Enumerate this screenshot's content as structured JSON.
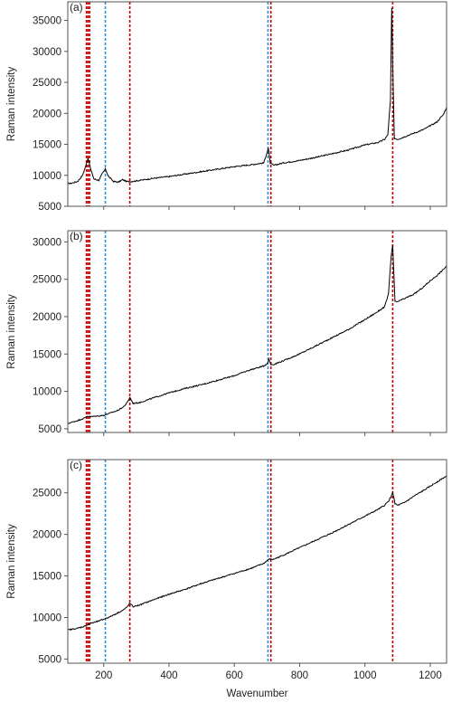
{
  "chart_data": {
    "xlabel": "Wavenumber",
    "xlim": [
      90,
      1250
    ],
    "xticks": [
      200,
      400,
      600,
      800,
      1000,
      1200
    ],
    "reference_lines": {
      "red": {
        "color": "#cc0000",
        "positions": [
          147,
          152,
          157,
          280,
          712,
          1085
        ]
      },
      "blue": {
        "color": "#2b8fd6",
        "positions": [
          205,
          703
        ]
      }
    },
    "panels": [
      {
        "label": "(a)",
        "type": "line",
        "ylabel": "Raman intensity",
        "ylim": [
          5000,
          38000
        ],
        "yticks": [
          5000,
          10000,
          15000,
          20000,
          25000,
          30000,
          35000
        ],
        "series": [
          {
            "color": "#000000",
            "x": [
              90,
              100,
              120,
              135,
              145,
              152,
              160,
              170,
              185,
              195,
              205,
              215,
              230,
              245,
              258,
              270,
              285,
              300,
              350,
              400,
              450,
              500,
              550,
              600,
              650,
              690,
              698,
              704,
              710,
              720,
              750,
              800,
              850,
              900,
              950,
              1000,
              1040,
              1060,
              1070,
              1078,
              1082,
              1085,
              1090,
              1100,
              1120,
              1150,
              1180,
              1200,
              1220,
              1240,
              1250
            ],
            "y": [
              8700,
              8700,
              9000,
              10000,
              11500,
              12800,
              11000,
              9400,
              9200,
              10200,
              11000,
              9800,
              9000,
              8900,
              9300,
              9000,
              9000,
              9100,
              9500,
              9800,
              10200,
              10600,
              11000,
              11400,
              11700,
              12000,
              13300,
              14400,
              12000,
              11600,
              12000,
              12400,
              12900,
              13500,
              14100,
              14900,
              15300,
              15800,
              16500,
              22000,
              37000,
              28000,
              16000,
              15800,
              16200,
              16800,
              17400,
              18000,
              18600,
              19800,
              21000
            ]
          }
        ]
      },
      {
        "label": "(b)",
        "type": "line",
        "ylabel": "Raman intensity",
        "ylim": [
          4500,
          31500
        ],
        "yticks": [
          5000,
          10000,
          15000,
          20000,
          25000,
          30000
        ],
        "series": [
          {
            "color": "#000000",
            "x": [
              90,
              120,
              140,
              150,
              160,
              180,
              200,
              220,
              240,
              260,
              272,
              280,
              290,
              310,
              350,
              400,
              450,
              500,
              550,
              600,
              650,
              690,
              700,
              706,
              712,
              720,
              750,
              800,
              850,
              900,
              950,
              1000,
              1040,
              1060,
              1072,
              1080,
              1085,
              1092,
              1100,
              1120,
              1150,
              1180,
              1200,
              1220,
              1240,
              1250
            ],
            "y": [
              5700,
              6100,
              6400,
              6700,
              6600,
              6700,
              6800,
              7100,
              7400,
              7900,
              8500,
              9200,
              8400,
              8500,
              9100,
              9800,
              10400,
              10900,
              11500,
              12100,
              12900,
              13400,
              13700,
              14300,
              13600,
              13600,
              14100,
              15000,
              16100,
              17200,
              18300,
              19600,
              20700,
              21300,
              23000,
              28000,
              29500,
              22000,
              22000,
              22400,
              23000,
              24000,
              24800,
              25500,
              26300,
              26800
            ]
          }
        ]
      },
      {
        "label": "(c)",
        "type": "line",
        "ylabel": "Raman intensity",
        "ylim": [
          4500,
          29000
        ],
        "yticks": [
          5000,
          10000,
          15000,
          20000,
          25000
        ],
        "series": [
          {
            "color": "#000000",
            "x": [
              90,
              120,
              145,
              160,
              180,
              200,
              220,
              240,
              260,
              270,
              280,
              290,
              310,
              350,
              400,
              450,
              500,
              550,
              600,
              650,
              690,
              705,
              720,
              750,
              800,
              850,
              900,
              950,
              1000,
              1040,
              1060,
              1072,
              1080,
              1085,
              1092,
              1100,
              1120,
              1150,
              1180,
              1200,
              1220,
              1240,
              1250
            ],
            "y": [
              8500,
              8700,
              9000,
              9300,
              9500,
              9800,
              10100,
              10500,
              10900,
              11200,
              11700,
              11300,
              11500,
              12100,
              12800,
              13400,
              14100,
              14700,
              15300,
              15900,
              16500,
              17000,
              17000,
              17500,
              18400,
              19300,
              20200,
              21200,
              22200,
              23000,
              23500,
              24000,
              24500,
              25100,
              23700,
              23500,
              23800,
              24600,
              25300,
              25800,
              26300,
              26800,
              27000
            ]
          }
        ]
      }
    ]
  }
}
